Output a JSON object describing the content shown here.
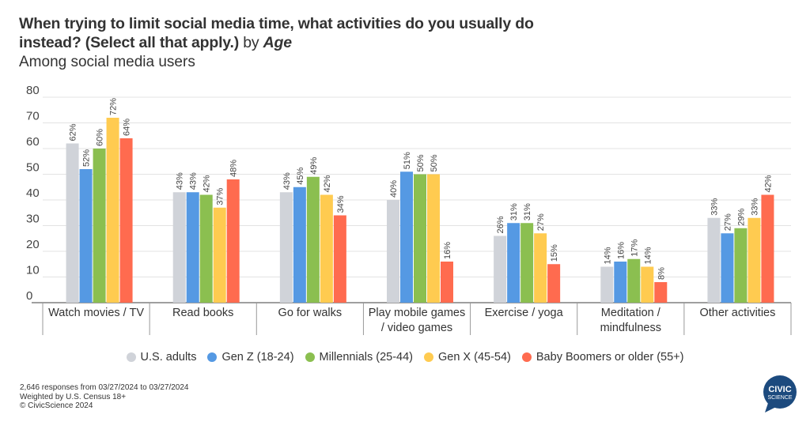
{
  "header": {
    "title_bold": "When trying to limit social media time, what activities do you usually do instead? (Select all that apply.)",
    "title_by": " by ",
    "title_italic": "Age",
    "subtitle": "Among social media users"
  },
  "chart_data": {
    "type": "bar",
    "title": "When trying to limit social media time, what activities do you usually do instead? (Select all that apply.) by Age",
    "subtitle": "Among social media users",
    "xlabel": "",
    "ylabel": "",
    "ylim": [
      0,
      80
    ],
    "yticks": [
      0,
      10,
      20,
      30,
      40,
      50,
      60,
      70,
      80
    ],
    "grid": true,
    "legend_position": "bottom",
    "value_suffix": "%",
    "categories": [
      [
        "Watch movies / TV"
      ],
      [
        "Read books"
      ],
      [
        "Go for walks"
      ],
      [
        "Play mobile games",
        "/ video games"
      ],
      [
        "Exercise / yoga"
      ],
      [
        "Meditation /",
        "mindfulness"
      ],
      [
        "Other activities"
      ]
    ],
    "series": [
      {
        "name": "U.S. adults",
        "color": "#D0D3D9",
        "values": [
          62,
          43,
          43,
          40,
          26,
          14,
          33
        ]
      },
      {
        "name": "Gen Z (18-24)",
        "color": "#5599E3",
        "values": [
          52,
          43,
          45,
          51,
          31,
          16,
          27
        ]
      },
      {
        "name": "Millennials (25-44)",
        "color": "#8BBF50",
        "values": [
          60,
          42,
          49,
          50,
          31,
          17,
          29
        ]
      },
      {
        "name": "Gen X (45-54)",
        "color": "#FFCB50",
        "values": [
          72,
          37,
          42,
          50,
          27,
          14,
          33
        ]
      },
      {
        "name": "Baby Boomers or older (55+)",
        "color": "#FF6B4F",
        "values": [
          64,
          48,
          34,
          16,
          15,
          8,
          42
        ]
      }
    ]
  },
  "footer": {
    "line1": "2,646 responses from 03/27/2024 to 03/27/2024",
    "line2": "Weighted by U.S. Census 18+",
    "line3": "© CivicScience 2024"
  },
  "logo": {
    "line1": "CIVIC",
    "line2": "SCIENCE",
    "color": "#1C4A7E"
  }
}
